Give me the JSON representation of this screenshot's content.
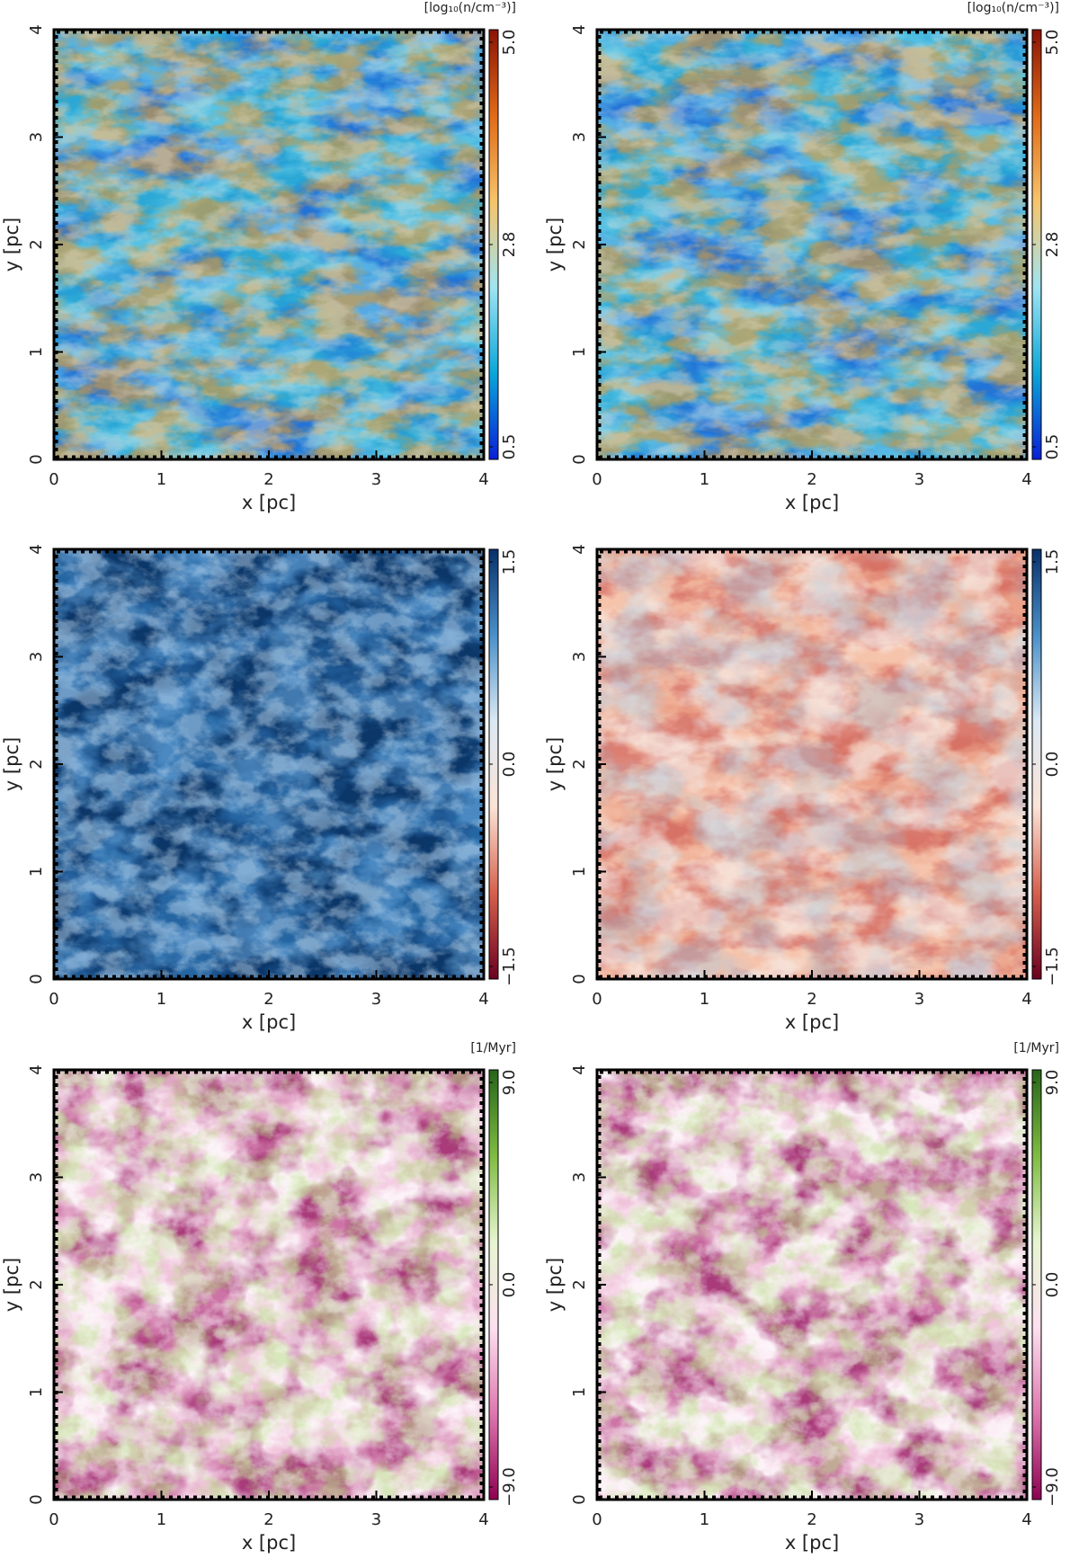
{
  "figure": {
    "panels": [
      {
        "id": "density-1",
        "colorscale": "density",
        "colorbar_ticks": [
          "5.0",
          "2.8",
          "0.5"
        ],
        "unit": "[log₁₀(n/cm⁻³)]"
      },
      {
        "id": "density-2",
        "colorscale": "density",
        "colorbar_ticks": [
          "5.0",
          "2.8",
          "0.5"
        ],
        "unit": "[log₁₀(n/cm⁻³)]"
      },
      {
        "id": "blue-1",
        "colorscale": "diverging-blue-red",
        "colorbar_ticks": [
          "1.5",
          "0.0",
          "−1.5"
        ],
        "unit": ""
      },
      {
        "id": "red-2",
        "colorscale": "diverging-blue-red",
        "colorbar_ticks": [
          "1.5",
          "0.0",
          "−1.5"
        ],
        "unit": ""
      },
      {
        "id": "rate-1",
        "colorscale": "diverging-green-magenta",
        "colorbar_ticks": [
          "9.0",
          "0.0",
          "−9.0"
        ],
        "unit": "[1/Myr]"
      },
      {
        "id": "rate-2",
        "colorscale": "diverging-green-magenta",
        "colorbar_ticks": [
          "9.0",
          "0.0",
          "−9.0"
        ],
        "unit": "[1/Myr]"
      }
    ]
  },
  "chart_data": [
    {
      "type": "heatmap",
      "xlabel": "x [pc]",
      "ylabel": "y [pc]",
      "xlim": [
        0,
        4
      ],
      "ylim": [
        0,
        4
      ],
      "x_ticks": [
        "0",
        "1",
        "2",
        "3",
        "4"
      ],
      "y_ticks": [
        "0",
        "1",
        "2",
        "3",
        "4"
      ],
      "colorbar": {
        "min": 0.5,
        "mid": 2.8,
        "max": 5.0,
        "unit": "[log₁₀(n/cm⁻³)]",
        "colors": [
          "#0a1fd6",
          "#0aa6d8",
          "#9fe4f2",
          "#f7c46a",
          "#e06a17",
          "#8a1306"
        ]
      }
    },
    {
      "type": "heatmap",
      "xlabel": "x [pc]",
      "ylabel": "y [pc]",
      "xlim": [
        0,
        4
      ],
      "ylim": [
        0,
        4
      ],
      "x_ticks": [
        "0",
        "1",
        "2",
        "3",
        "4"
      ],
      "y_ticks": [
        "0",
        "1",
        "2",
        "3",
        "4"
      ],
      "colorbar": {
        "min": 0.5,
        "mid": 2.8,
        "max": 5.0,
        "unit": "[log₁₀(n/cm⁻³)]",
        "colors": [
          "#0a1fd6",
          "#0aa6d8",
          "#9fe4f2",
          "#f7c46a",
          "#e06a17",
          "#8a1306"
        ]
      }
    },
    {
      "type": "heatmap",
      "xlabel": "x [pc]",
      "ylabel": "y [pc]",
      "xlim": [
        0,
        4
      ],
      "ylim": [
        0,
        4
      ],
      "x_ticks": [
        "0",
        "1",
        "2",
        "3",
        "4"
      ],
      "y_ticks": [
        "0",
        "1",
        "2",
        "3",
        "4"
      ],
      "colorbar": {
        "min": -1.5,
        "mid": 0.0,
        "max": 1.5,
        "unit": "",
        "colors": [
          "#6b0020",
          "#d6604d",
          "#fbe3d6",
          "#dbe9f4",
          "#4a90c8",
          "#08306b"
        ]
      }
    },
    {
      "type": "heatmap",
      "xlabel": "x [pc]",
      "ylabel": "y [pc]",
      "xlim": [
        0,
        4
      ],
      "ylim": [
        0,
        4
      ],
      "x_ticks": [
        "0",
        "1",
        "2",
        "3",
        "4"
      ],
      "y_ticks": [
        "0",
        "1",
        "2",
        "3",
        "4"
      ],
      "colorbar": {
        "min": -1.5,
        "mid": 0.0,
        "max": 1.5,
        "unit": "",
        "colors": [
          "#6b0020",
          "#d6604d",
          "#fbe3d6",
          "#dbe9f4",
          "#4a90c8",
          "#08306b"
        ]
      }
    },
    {
      "type": "heatmap",
      "xlabel": "x [pc]",
      "ylabel": "y [pc]",
      "xlim": [
        0,
        4
      ],
      "ylim": [
        0,
        4
      ],
      "x_ticks": [
        "0",
        "1",
        "2",
        "3",
        "4"
      ],
      "y_ticks": [
        "0",
        "1",
        "2",
        "3",
        "4"
      ],
      "colorbar": {
        "min": -9.0,
        "mid": 0.0,
        "max": 9.0,
        "unit": "[1/Myr]",
        "colors": [
          "#8e0152",
          "#de77ae",
          "#fde0ef",
          "#e6f5d0",
          "#7fbc41",
          "#276419"
        ]
      }
    },
    {
      "type": "heatmap",
      "xlabel": "x [pc]",
      "ylabel": "y [pc]",
      "xlim": [
        0,
        4
      ],
      "ylim": [
        0,
        4
      ],
      "x_ticks": [
        "0",
        "1",
        "2",
        "3",
        "4"
      ],
      "y_ticks": [
        "0",
        "1",
        "2",
        "3",
        "4"
      ],
      "colorbar": {
        "min": -9.0,
        "mid": 0.0,
        "max": 9.0,
        "unit": "[1/Myr]",
        "colors": [
          "#8e0152",
          "#de77ae",
          "#fde0ef",
          "#e6f5d0",
          "#7fbc41",
          "#276419"
        ]
      }
    }
  ]
}
